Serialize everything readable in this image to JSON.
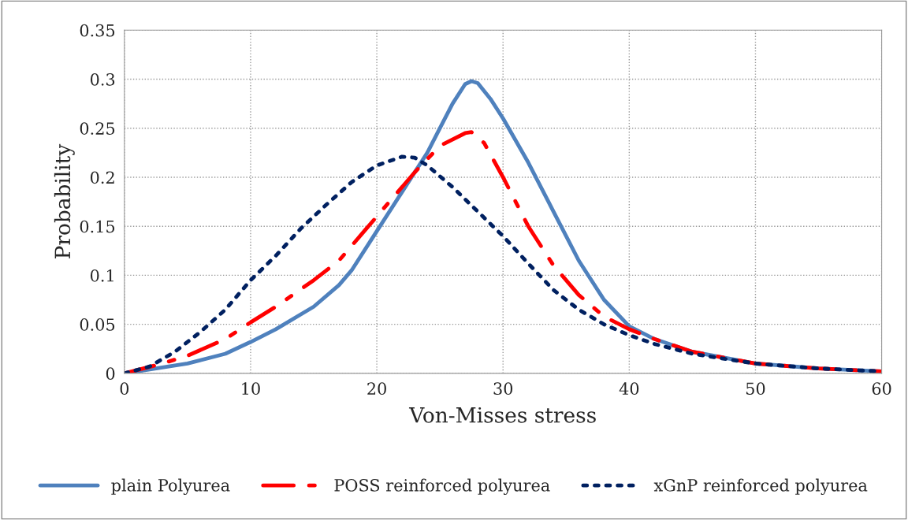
{
  "chart_data": {
    "type": "line",
    "xlabel": "Von-Misses stress",
    "ylabel": "Probability",
    "xlim": [
      0,
      60
    ],
    "xticks": [
      0,
      10,
      20,
      30,
      40,
      50,
      60
    ],
    "ylim": [
      0,
      0.35
    ],
    "yticks": [
      0,
      0.05,
      0.1,
      0.15,
      0.2,
      0.25,
      0.3,
      0.35
    ],
    "grid": true,
    "legend": "bottom",
    "marker": "none",
    "series": [
      {
        "name": "plain Polyurea",
        "color": "#4f81bd",
        "line_style": "solid",
        "x": [
          0,
          5,
          8,
          10,
          12,
          15,
          17,
          18,
          20,
          22,
          24,
          25,
          26,
          27,
          27.5,
          28,
          29,
          30,
          32,
          34,
          35,
          36,
          38,
          40,
          42,
          45,
          50,
          55,
          60
        ],
        "values": [
          0,
          0.01,
          0.02,
          0.032,
          0.045,
          0.068,
          0.09,
          0.105,
          0.145,
          0.185,
          0.225,
          0.25,
          0.275,
          0.295,
          0.298,
          0.296,
          0.28,
          0.26,
          0.215,
          0.165,
          0.14,
          0.115,
          0.075,
          0.048,
          0.035,
          0.022,
          0.01,
          0.005,
          0.002
        ]
      },
      {
        "name": "POSS reinforced polyurea",
        "color": "#ff0000",
        "line_style": "dashdot",
        "x": [
          0,
          3,
          5,
          8,
          10,
          12,
          15,
          17,
          19,
          21,
          23,
          25,
          27,
          27.5,
          28.5,
          30,
          32,
          34,
          36,
          38,
          40,
          42,
          45,
          50,
          55,
          60
        ],
        "values": [
          0,
          0.01,
          0.018,
          0.035,
          0.052,
          0.068,
          0.095,
          0.115,
          0.145,
          0.175,
          0.205,
          0.232,
          0.245,
          0.246,
          0.235,
          0.2,
          0.15,
          0.11,
          0.08,
          0.058,
          0.045,
          0.035,
          0.022,
          0.01,
          0.005,
          0.002
        ]
      },
      {
        "name": "xGnP reinforced polyurea",
        "color": "#002060",
        "line_style": "dotted",
        "x": [
          0,
          2,
          4,
          6,
          8,
          10,
          12,
          14,
          16,
          18,
          20,
          22,
          23,
          24,
          26,
          28,
          30,
          32,
          34,
          36,
          38,
          40,
          42,
          45,
          50,
          55,
          60
        ],
        "values": [
          0,
          0.007,
          0.022,
          0.042,
          0.065,
          0.095,
          0.12,
          0.148,
          0.172,
          0.195,
          0.212,
          0.221,
          0.22,
          0.212,
          0.19,
          0.165,
          0.14,
          0.112,
          0.085,
          0.065,
          0.05,
          0.039,
          0.03,
          0.02,
          0.01,
          0.005,
          0.002
        ]
      }
    ]
  }
}
